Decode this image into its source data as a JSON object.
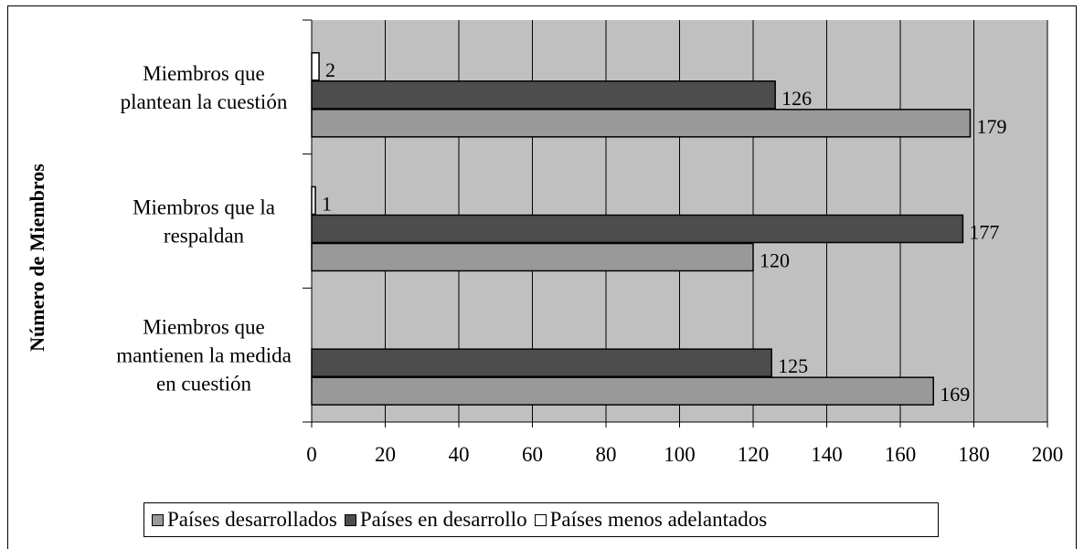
{
  "chart_data": {
    "type": "bar",
    "orientation": "horizontal",
    "ylabel": "Número de Miembros",
    "categories": [
      [
        "Miembros que",
        "plantean la cuestión"
      ],
      [
        "Miembros que la",
        "respaldan"
      ],
      [
        "Miembros que",
        "mantienen la medida",
        "en cuestión"
      ]
    ],
    "series": [
      {
        "name": "Países desarrollados",
        "color": "#999999",
        "values": [
          179,
          120,
          169
        ]
      },
      {
        "name": "Países en desarrollo",
        "color": "#4d4d4d",
        "values": [
          126,
          177,
          125
        ]
      },
      {
        "name": "Países menos adelantados",
        "color": "#ffffff",
        "values": [
          2,
          1,
          null
        ]
      }
    ],
    "xlim": [
      0,
      200
    ],
    "xticks": [
      "0",
      "20",
      "40",
      "60",
      "80",
      "100",
      "120",
      "140",
      "160",
      "180",
      "200"
    ],
    "plot_background": "#c0c0c0",
    "grid": true,
    "legend": "bottom"
  }
}
